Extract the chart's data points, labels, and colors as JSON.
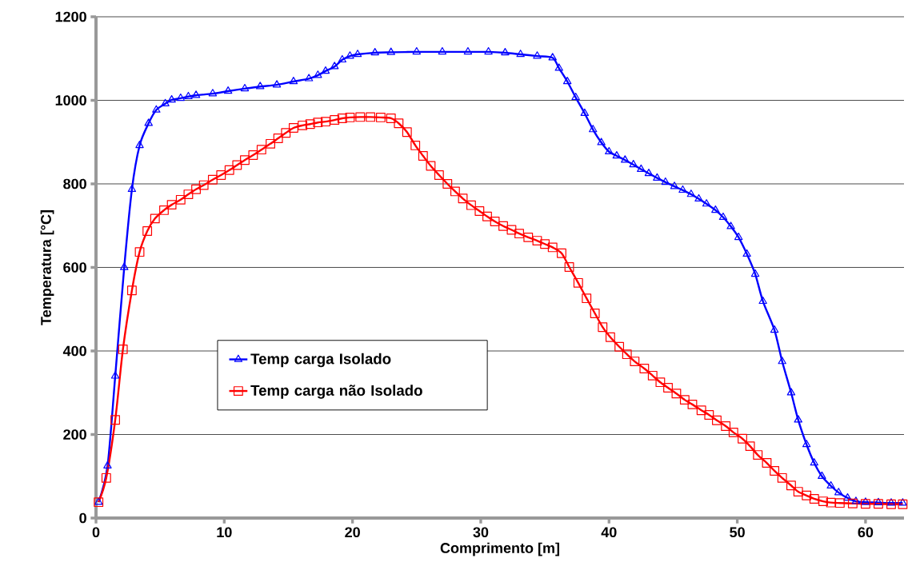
{
  "chart_data": {
    "type": "line",
    "xlabel": "Comprimento [m]",
    "ylabel": "Temperatura [°C]",
    "xlim": [
      0,
      63
    ],
    "xticks": [
      0,
      10,
      20,
      30,
      40,
      50,
      60
    ],
    "ylim": [
      0,
      1200
    ],
    "yticks": [
      0,
      200,
      400,
      600,
      800,
      1000,
      1200
    ],
    "grid": "y",
    "legend": "center left",
    "line_style": "solid",
    "series": [
      {
        "name": "Temp carga Isolado",
        "color": "#0000ff",
        "marker": "triangle",
        "x": [
          0.2,
          0.9,
          1.5,
          2.2,
          2.8,
          3.4,
          4.1,
          4.7,
          5.4,
          5.9,
          6.6,
          7.2,
          7.8,
          9.1,
          10.3,
          11.6,
          12.8,
          14.1,
          15.4,
          16.6,
          17.3,
          17.9,
          18.6,
          19.2,
          19.8,
          20.4,
          21.75,
          23,
          25,
          27,
          29,
          30.6,
          31.9,
          33.1,
          34.4,
          35.6,
          36.1,
          36.75,
          37.4,
          38.1,
          38.75,
          39.4,
          40,
          40.6,
          41.25,
          41.9,
          42.5,
          43.1,
          43.75,
          44.4,
          45.1,
          45.75,
          46.4,
          47,
          47.6,
          48.3,
          48.9,
          49.5,
          50.1,
          50.75,
          51.4,
          52,
          52.9,
          53.5,
          54.2,
          54.75,
          55.4,
          56,
          56.6,
          57.3,
          57.9,
          58.6,
          59.25,
          60,
          61,
          62,
          62.9
        ],
        "values": [
          38,
          125,
          340,
          600,
          787,
          892,
          945,
          977,
          992,
          1001,
          1005,
          1009,
          1012,
          1016,
          1022,
          1028,
          1033,
          1037,
          1045,
          1052,
          1060,
          1070,
          1081,
          1097,
          1106,
          1110,
          1114,
          1115,
          1116,
          1116,
          1116,
          1116,
          1114,
          1110,
          1106,
          1102,
          1077,
          1045,
          1007,
          969,
          930,
          899,
          877,
          867,
          857,
          846,
          835,
          825,
          814,
          804,
          794,
          785,
          775,
          764,
          752,
          737,
          720,
          698,
          672,
          632,
          584,
          519,
          450,
          375,
          300,
          235,
          176,
          132,
          100,
          77,
          61,
          48,
          40,
          38,
          37,
          36,
          36
        ]
      },
      {
        "name": "Temp carga não Isolado",
        "color": "#ff0000",
        "marker": "square",
        "x": [
          0.2,
          0.8,
          1.5,
          2.1,
          2.8,
          3.4,
          4,
          4.6,
          5.3,
          5.9,
          6.6,
          7.2,
          7.8,
          8.4,
          9.1,
          9.75,
          10.4,
          11,
          11.6,
          12.25,
          12.9,
          13.6,
          14.2,
          14.8,
          15.4,
          16.1,
          16.7,
          17.3,
          17.9,
          18.6,
          19.2,
          19.8,
          20.6,
          21.4,
          22.2,
          23,
          23.6,
          24.25,
          24.9,
          25.5,
          26.1,
          26.75,
          27.4,
          28,
          28.6,
          29.25,
          29.9,
          30.5,
          31.1,
          31.75,
          32.4,
          33,
          33.7,
          34.4,
          35,
          35.6,
          36.3,
          36.9,
          37.6,
          38.25,
          38.9,
          39.5,
          40.1,
          40.8,
          41.4,
          42,
          42.75,
          43.4,
          44,
          44.6,
          45.25,
          45.9,
          46.5,
          47.2,
          47.8,
          48.4,
          49.1,
          49.7,
          50.4,
          51,
          51.6,
          52.3,
          52.9,
          53.5,
          54.2,
          54.75,
          55.4,
          56,
          56.7,
          57.3,
          58,
          59,
          60,
          61,
          62,
          62.9
        ],
        "values": [
          38,
          96,
          235,
          404,
          545,
          637,
          687,
          717,
          737,
          750,
          762,
          775,
          787,
          797,
          810,
          821,
          833,
          845,
          857,
          869,
          882,
          896,
          909,
          922,
          934,
          940,
          943,
          947,
          949,
          953,
          957,
          959,
          960,
          960,
          959,
          957,
          945,
          924,
          892,
          867,
          843,
          821,
          800,
          782,
          765,
          749,
          735,
          722,
          710,
          699,
          690,
          681,
          672,
          664,
          656,
          648,
          634,
          601,
          563,
          526,
          490,
          457,
          433,
          410,
          392,
          375,
          358,
          341,
          325,
          312,
          298,
          283,
          272,
          258,
          247,
          234,
          220,
          205,
          190,
          172,
          151,
          132,
          113,
          96,
          78,
          63,
          54,
          46,
          40,
          37,
          36,
          35,
          34,
          34,
          33,
          33
        ]
      }
    ]
  }
}
